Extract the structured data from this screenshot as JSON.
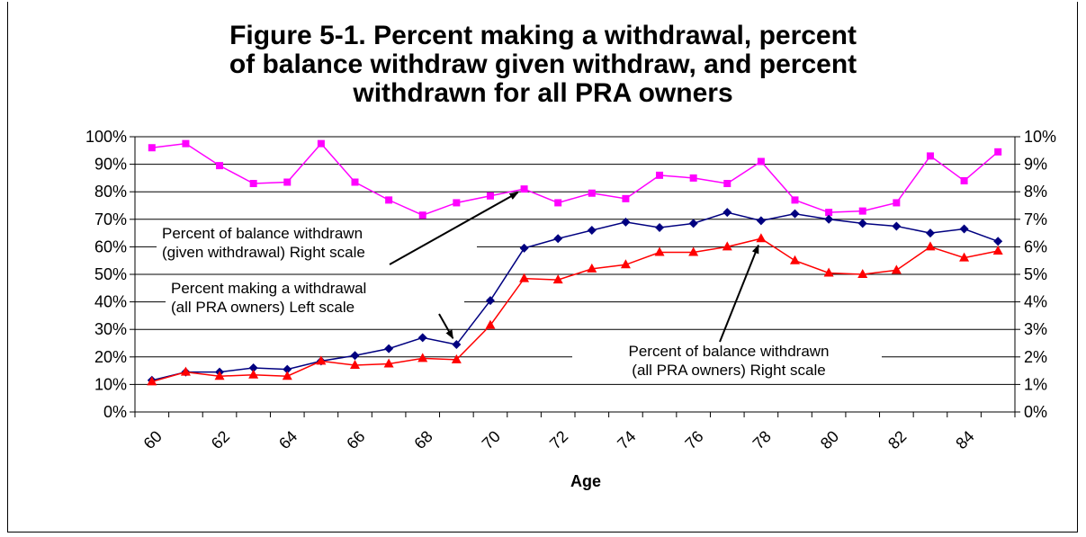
{
  "chart_data": {
    "type": "line",
    "title": "Figure 5-1.  Percent making a withdrawal, percent\nof balance withdraw given withdraw, and percent\nwithdrawn for all PRA owners",
    "xlabel": "Age",
    "x": [
      60,
      61,
      62,
      63,
      64,
      65,
      66,
      67,
      68,
      69,
      70,
      71,
      72,
      73,
      74,
      75,
      76,
      77,
      78,
      79,
      80,
      81,
      82,
      83,
      84,
      85
    ],
    "x_tick_labels": [
      "60",
      "62",
      "64",
      "66",
      "68",
      "70",
      "72",
      "74",
      "76",
      "78",
      "80",
      "82",
      "84"
    ],
    "left_axis": {
      "ylim": [
        0,
        100
      ],
      "tick_labels": [
        "0%",
        "10%",
        "20%",
        "30%",
        "40%",
        "50%",
        "60%",
        "70%",
        "80%",
        "90%",
        "100%"
      ]
    },
    "right_axis": {
      "ylim": [
        0,
        10
      ],
      "tick_labels": [
        "0%",
        "1%",
        "2%",
        "3%",
        "4%",
        "5%",
        "6%",
        "7%",
        "8%",
        "9%",
        "10%"
      ]
    },
    "grid": true,
    "series": [
      {
        "name": "Percent of balance withdrawn (given withdrawal) Right scale",
        "axis": "right",
        "color": "#ff00ff",
        "marker": "square",
        "values": [
          9.6,
          9.75,
          8.95,
          8.3,
          8.35,
          9.75,
          8.35,
          7.7,
          7.15,
          7.6,
          7.85,
          8.1,
          7.6,
          7.95,
          7.75,
          8.6,
          8.5,
          8.3,
          9.1,
          7.7,
          7.25,
          7.3,
          7.6,
          9.3,
          8.4,
          9.45
        ]
      },
      {
        "name": "Percent making a withdrawal (all PRA owners) Left scale",
        "axis": "left",
        "color": "#000080",
        "marker": "diamond",
        "values": [
          11.5,
          14.5,
          14.5,
          16,
          15.5,
          18.5,
          20.5,
          23,
          27,
          24.5,
          40.5,
          59.5,
          63,
          66,
          69,
          67,
          68.5,
          72.5,
          69.5,
          72,
          70,
          68.5,
          67.5,
          65,
          66.5,
          62
        ]
      },
      {
        "name": "Percent of balance withdrawn (all PRA owners) Right scale",
        "axis": "right",
        "color": "#ff0000",
        "marker": "triangle",
        "values": [
          1.1,
          1.45,
          1.3,
          1.35,
          1.3,
          1.85,
          1.7,
          1.75,
          1.95,
          1.9,
          3.15,
          4.85,
          4.8,
          5.2,
          5.35,
          5.8,
          5.8,
          6.0,
          6.3,
          5.5,
          5.05,
          5.0,
          5.15,
          6.0,
          5.6,
          5.85
        ]
      }
    ],
    "annotations": [
      {
        "lines": [
          "Percent of balance withdrawn",
          "(given withdrawal)  Right scale"
        ],
        "arrow_to": {
          "series": 0,
          "x": 71
        }
      },
      {
        "lines": [
          "Percent making a withdrawal",
          "(all PRA owners) Left scale"
        ],
        "arrow_to": {
          "series": 1,
          "x": 69
        }
      },
      {
        "lines": [
          "Percent of balance withdrawn",
          "(all PRA owners) Right scale"
        ],
        "arrow_to": {
          "series": 2,
          "x": 78
        }
      }
    ]
  }
}
